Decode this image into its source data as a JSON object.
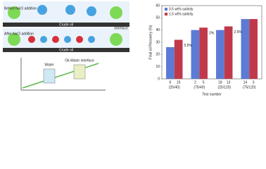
{
  "chart_data": {
    "type": "bar",
    "y_label": "Final oil Recovery (%)",
    "x_label": "Test number",
    "categories": [
      "(25/40)",
      "(75/40)",
      "(25/120)",
      "(75/120)"
    ],
    "series": [
      {
        "name": "0.5 wt% salinity",
        "color": "#5b7bd5",
        "values": [
          26,
          40,
          40,
          49
        ],
        "bar_labels": [
          "6",
          "2",
          "18",
          "14"
        ]
      },
      {
        "name": "1.5 wt% salinity",
        "color": "#c0394b",
        "values": [
          32,
          42,
          43,
          49
        ],
        "bar_labels": [
          "15",
          "5",
          "13",
          "3"
        ]
      }
    ],
    "annotations": [
      "5.5%",
      "2%",
      "2.5%"
    ],
    "ylim": [
      0,
      60
    ],
    "yticks": [
      0,
      10,
      20,
      30,
      40,
      50,
      60
    ],
    "legend": "upper left"
  },
  "diagram": {
    "before": "Before NaCl addition",
    "after": "After NaCl addition",
    "crude_top": "Crude oil",
    "crude_bottom": "Crude oil",
    "interface": "Interface",
    "water": "Water",
    "oil_water": "Oil-Water interface"
  }
}
